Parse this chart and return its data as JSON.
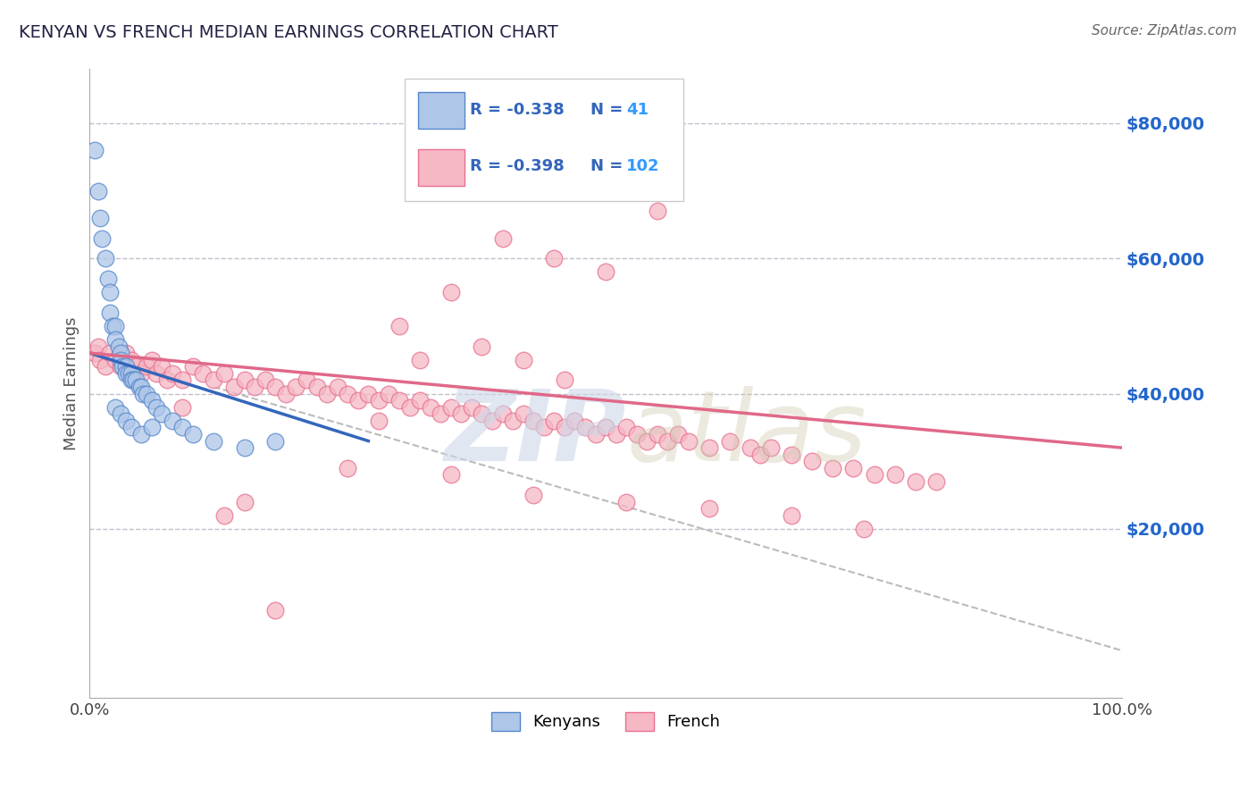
{
  "title": "KENYAN VS FRENCH MEDIAN EARNINGS CORRELATION CHART",
  "source": "Source: ZipAtlas.com",
  "ylabel": "Median Earnings",
  "y_tick_labels": [
    "$20,000",
    "$40,000",
    "$60,000",
    "$80,000"
  ],
  "y_tick_values": [
    20000,
    40000,
    60000,
    80000
  ],
  "y_lim": [
    -5000,
    88000
  ],
  "x_lim": [
    0,
    1.0
  ],
  "kenyan_R": -0.338,
  "kenyan_N": 41,
  "french_R": -0.398,
  "french_N": 102,
  "kenyan_color": "#aec6e8",
  "french_color": "#f5b8c4",
  "kenyan_edge_color": "#5588cc",
  "french_edge_color": "#e87090",
  "kenyan_line_color": "#3366bb",
  "french_line_color": "#e06888",
  "dashed_line_color": "#bbbbbb",
  "title_color": "#222244",
  "source_color": "#666666",
  "legend_label_color": "#3366bb",
  "legend_N_color": "#3399ff",
  "watermark_color": "#ccd8e8",
  "kenyan_x": [
    0.005,
    0.008,
    0.01,
    0.012,
    0.015,
    0.018,
    0.02,
    0.02,
    0.022,
    0.025,
    0.025,
    0.028,
    0.03,
    0.03,
    0.032,
    0.035,
    0.035,
    0.038,
    0.04,
    0.04,
    0.042,
    0.045,
    0.048,
    0.05,
    0.052,
    0.055,
    0.06,
    0.065,
    0.07,
    0.08,
    0.09,
    0.1,
    0.12,
    0.15,
    0.18,
    0.025,
    0.03,
    0.035,
    0.04,
    0.05,
    0.06
  ],
  "kenyan_y": [
    76000,
    70000,
    66000,
    63000,
    60000,
    57000,
    55000,
    52000,
    50000,
    50000,
    48000,
    47000,
    46000,
    45000,
    44000,
    44000,
    43000,
    43000,
    43000,
    42000,
    42000,
    42000,
    41000,
    41000,
    40000,
    40000,
    39000,
    38000,
    37000,
    36000,
    35000,
    34000,
    33000,
    32000,
    33000,
    38000,
    37000,
    36000,
    35000,
    34000,
    35000
  ],
  "french_x": [
    0.005,
    0.008,
    0.01,
    0.015,
    0.02,
    0.025,
    0.03,
    0.035,
    0.04,
    0.045,
    0.05,
    0.055,
    0.06,
    0.065,
    0.07,
    0.075,
    0.08,
    0.09,
    0.1,
    0.11,
    0.12,
    0.13,
    0.14,
    0.15,
    0.16,
    0.17,
    0.18,
    0.19,
    0.2,
    0.21,
    0.22,
    0.23,
    0.24,
    0.25,
    0.26,
    0.27,
    0.28,
    0.29,
    0.3,
    0.31,
    0.32,
    0.33,
    0.34,
    0.35,
    0.36,
    0.37,
    0.38,
    0.39,
    0.4,
    0.41,
    0.42,
    0.43,
    0.44,
    0.45,
    0.46,
    0.47,
    0.48,
    0.49,
    0.5,
    0.51,
    0.52,
    0.53,
    0.54,
    0.55,
    0.56,
    0.57,
    0.58,
    0.6,
    0.62,
    0.64,
    0.65,
    0.66,
    0.68,
    0.7,
    0.72,
    0.74,
    0.76,
    0.78,
    0.8,
    0.82,
    0.35,
    0.4,
    0.45,
    0.5,
    0.55,
    0.3,
    0.38,
    0.42,
    0.46,
    0.32,
    0.28,
    0.18,
    0.13,
    0.15,
    0.09,
    0.25,
    0.35,
    0.43,
    0.52,
    0.6,
    0.68,
    0.75
  ],
  "french_y": [
    46000,
    47000,
    45000,
    44000,
    46000,
    45000,
    44000,
    46000,
    45000,
    44000,
    43000,
    44000,
    45000,
    43000,
    44000,
    42000,
    43000,
    42000,
    44000,
    43000,
    42000,
    43000,
    41000,
    42000,
    41000,
    42000,
    41000,
    40000,
    41000,
    42000,
    41000,
    40000,
    41000,
    40000,
    39000,
    40000,
    39000,
    40000,
    39000,
    38000,
    39000,
    38000,
    37000,
    38000,
    37000,
    38000,
    37000,
    36000,
    37000,
    36000,
    37000,
    36000,
    35000,
    36000,
    35000,
    36000,
    35000,
    34000,
    35000,
    34000,
    35000,
    34000,
    33000,
    34000,
    33000,
    34000,
    33000,
    32000,
    33000,
    32000,
    31000,
    32000,
    31000,
    30000,
    29000,
    29000,
    28000,
    28000,
    27000,
    27000,
    55000,
    63000,
    60000,
    58000,
    67000,
    50000,
    47000,
    45000,
    42000,
    45000,
    36000,
    8000,
    22000,
    24000,
    38000,
    29000,
    28000,
    25000,
    24000,
    23000,
    22000,
    20000
  ],
  "kenyan_line_x": [
    0.0,
    0.27
  ],
  "kenyan_line_y": [
    46000,
    33000
  ],
  "french_line_x": [
    0.0,
    1.0
  ],
  "french_line_y": [
    46000,
    32000
  ],
  "dashed_line_x": [
    0.12,
    1.0
  ],
  "dashed_line_y": [
    41000,
    2000
  ]
}
